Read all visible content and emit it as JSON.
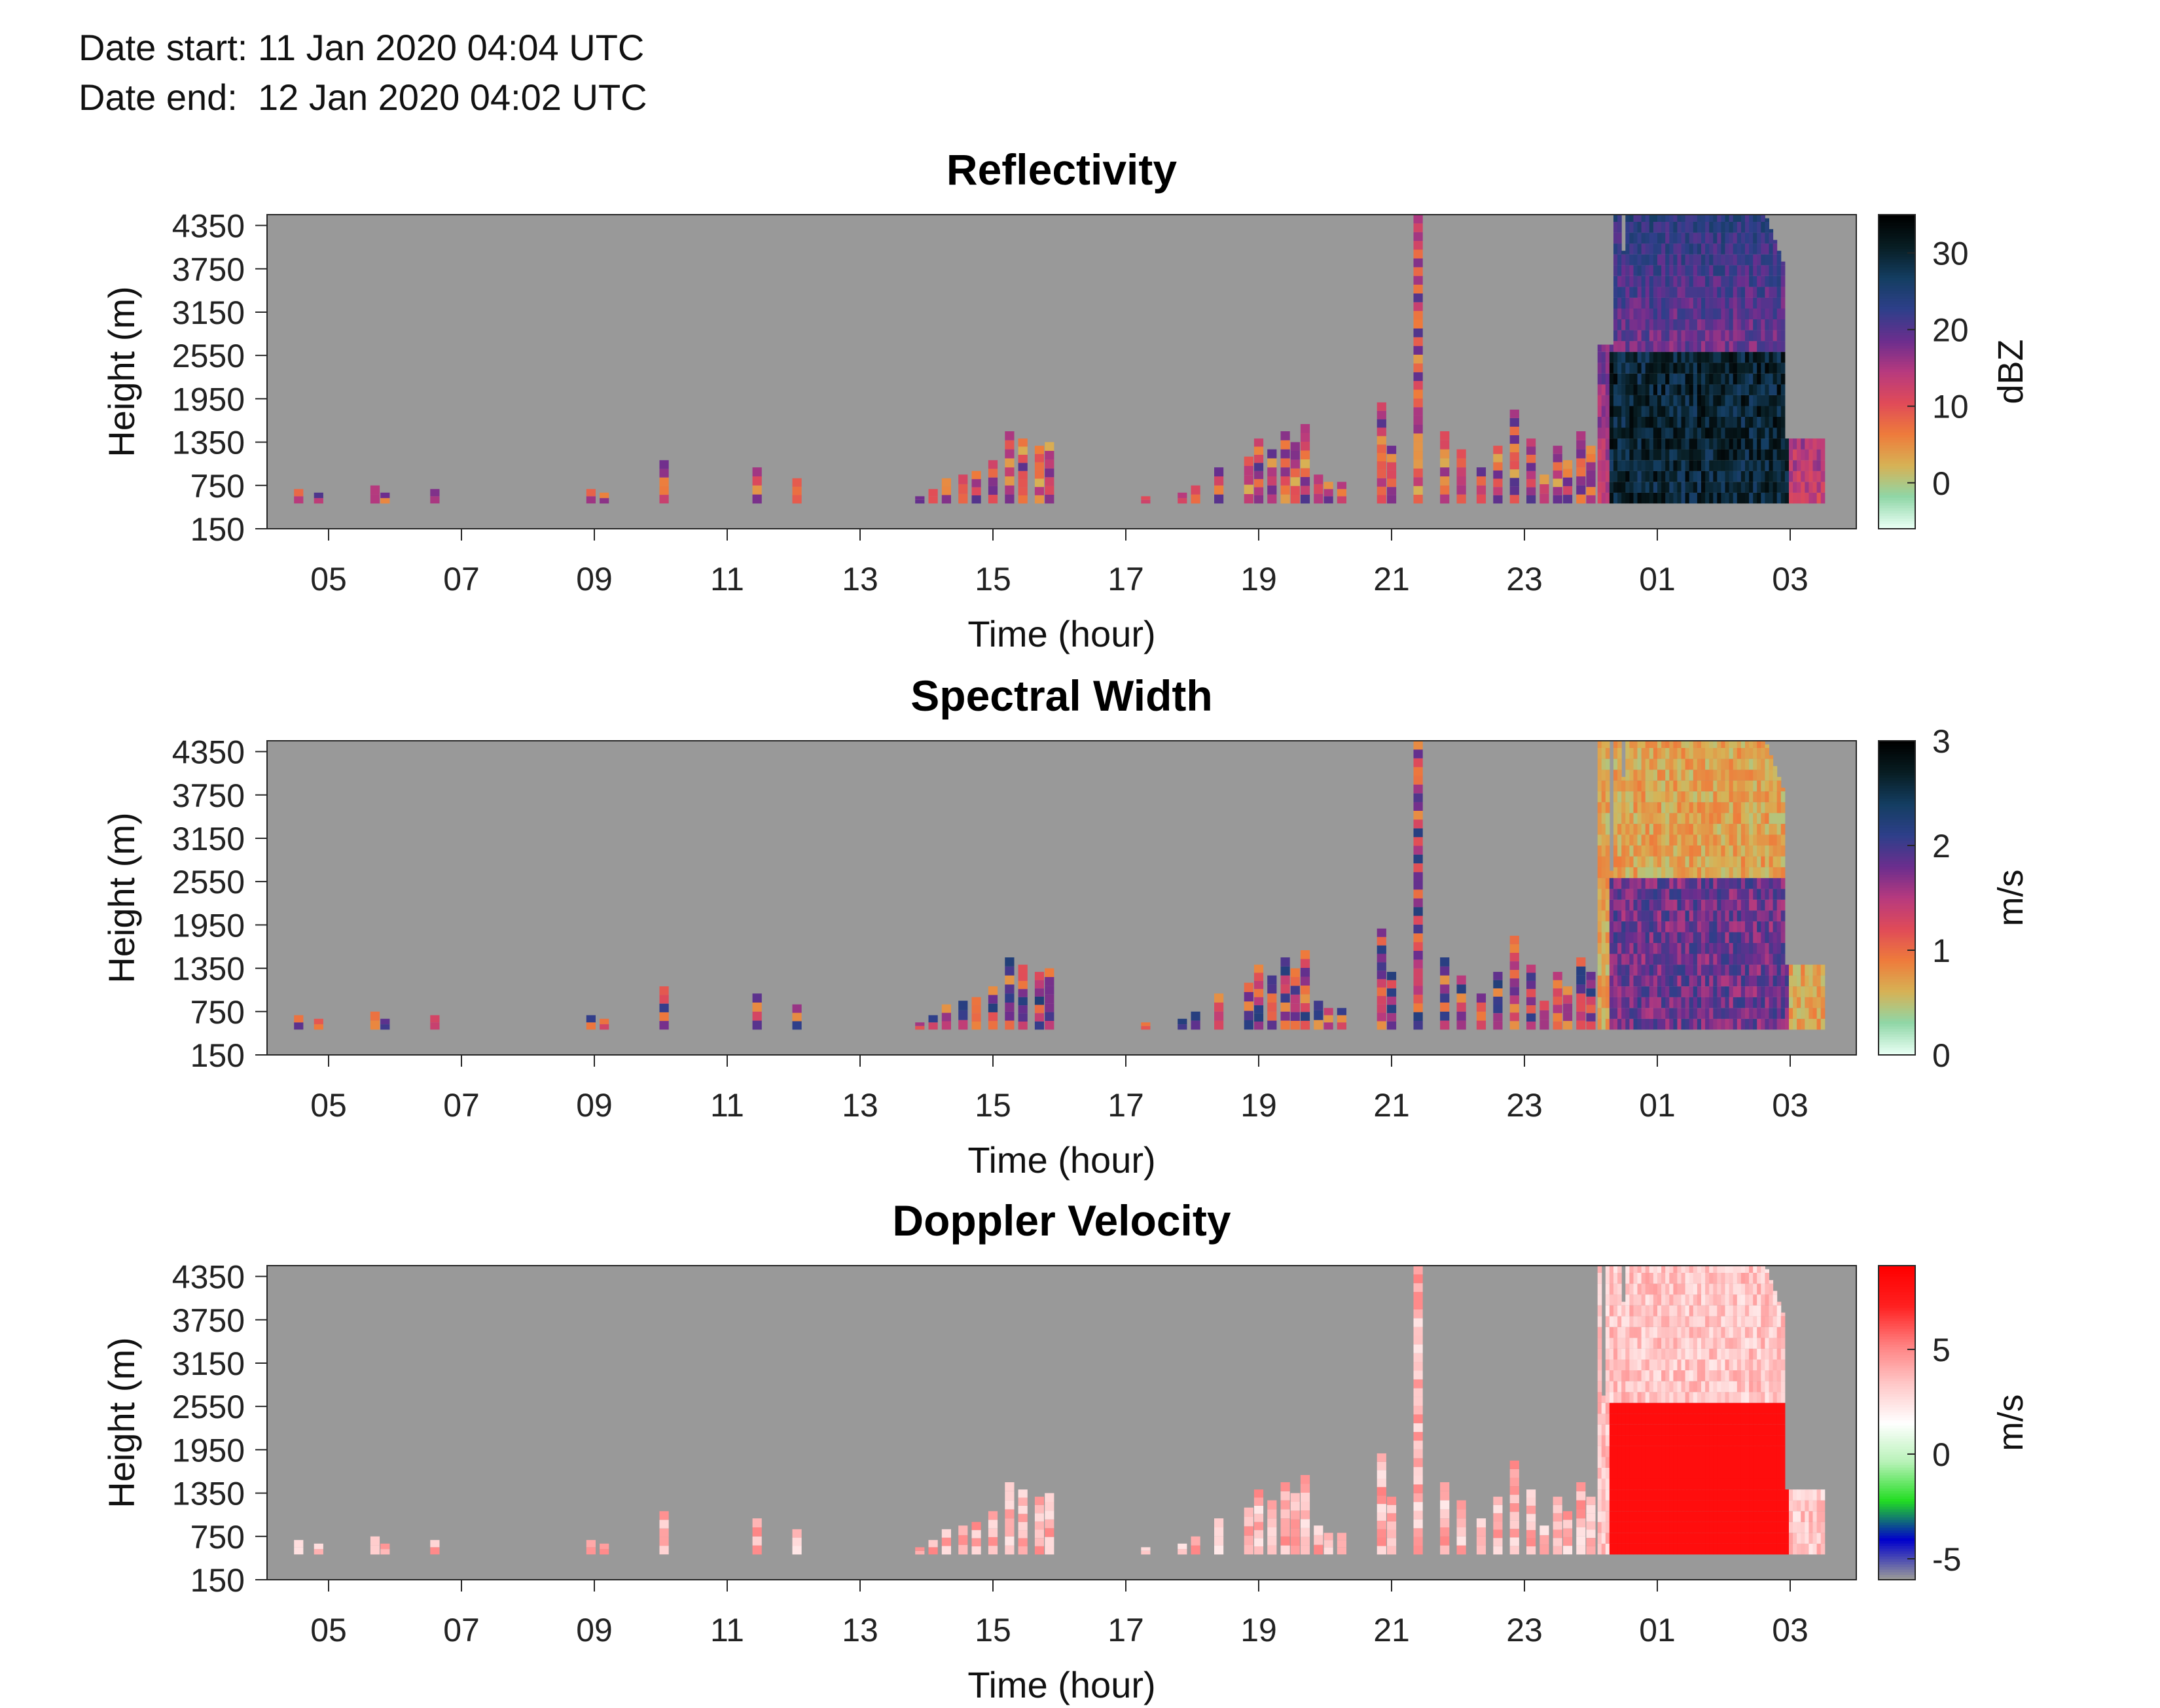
{
  "header": {
    "date_start_label": "Date start:",
    "date_start": "11 Jan 2020 04:04 UTC",
    "date_end_label": "Date end:",
    "date_end": "12 Jan 2020 04:02 UTC"
  },
  "colors": {
    "background_missing": "#999999",
    "axis": "#262626"
  },
  "chart_data": [
    {
      "type": "heatmap",
      "title": "Reflectivity",
      "xlabel": "Time (hour)",
      "ylabel": "Height (m)",
      "colorbar_label": "dBZ",
      "x_ticks": [
        "05",
        "07",
        "09",
        "11",
        "13",
        "15",
        "17",
        "19",
        "21",
        "23",
        "01",
        "03"
      ],
      "y_ticks": [
        "150",
        "750",
        "1350",
        "1950",
        "2550",
        "3150",
        "3750",
        "4350"
      ],
      "ylim": [
        150,
        4500
      ],
      "colorbar_ticks": [
        0,
        10,
        20,
        30
      ],
      "colorbar_range": [
        -6,
        35
      ],
      "colormap": [
        "#e8fff4",
        "#8fd6a6",
        "#d7b255",
        "#ee7b3b",
        "#e04b58",
        "#b73a7e",
        "#6b2e8e",
        "#2e3f8a",
        "#143e62",
        "#081e24",
        "#000000"
      ]
    },
    {
      "type": "heatmap",
      "title": "Spectral Width",
      "xlabel": "Time (hour)",
      "ylabel": "Height (m)",
      "colorbar_label": "m/s",
      "x_ticks": [
        "05",
        "07",
        "09",
        "11",
        "13",
        "15",
        "17",
        "19",
        "21",
        "23",
        "01",
        "03"
      ],
      "y_ticks": [
        "150",
        "750",
        "1350",
        "1950",
        "2550",
        "3150",
        "3750",
        "4350"
      ],
      "ylim": [
        150,
        4500
      ],
      "colorbar_ticks": [
        0,
        1,
        2,
        3
      ],
      "colorbar_range": [
        0,
        3
      ],
      "colormap": [
        "#e8fff4",
        "#8fd6a6",
        "#d7b255",
        "#ee7b3b",
        "#e04b58",
        "#b73a7e",
        "#6b2e8e",
        "#2e3f8a",
        "#143e62",
        "#081e24",
        "#000000"
      ]
    },
    {
      "type": "heatmap",
      "title": "Doppler Velocity",
      "xlabel": "Time (hour)",
      "ylabel": "Height (m)",
      "colorbar_label": "m/s",
      "x_ticks": [
        "05",
        "07",
        "09",
        "11",
        "13",
        "15",
        "17",
        "19",
        "21",
        "23",
        "01",
        "03"
      ],
      "y_ticks": [
        "150",
        "750",
        "1350",
        "1950",
        "2550",
        "3150",
        "3750",
        "4350"
      ],
      "ylim": [
        150,
        4500
      ],
      "colorbar_ticks": [
        -5,
        0,
        5
      ],
      "colorbar_range": [
        -6,
        9
      ],
      "colormap": [
        "#999999",
        "#0000cc",
        "#22dd22",
        "#b8f2b8",
        "#ffffff",
        "#ffc8c8",
        "#ff8080",
        "#ff2020",
        "#ff0000"
      ]
    }
  ]
}
